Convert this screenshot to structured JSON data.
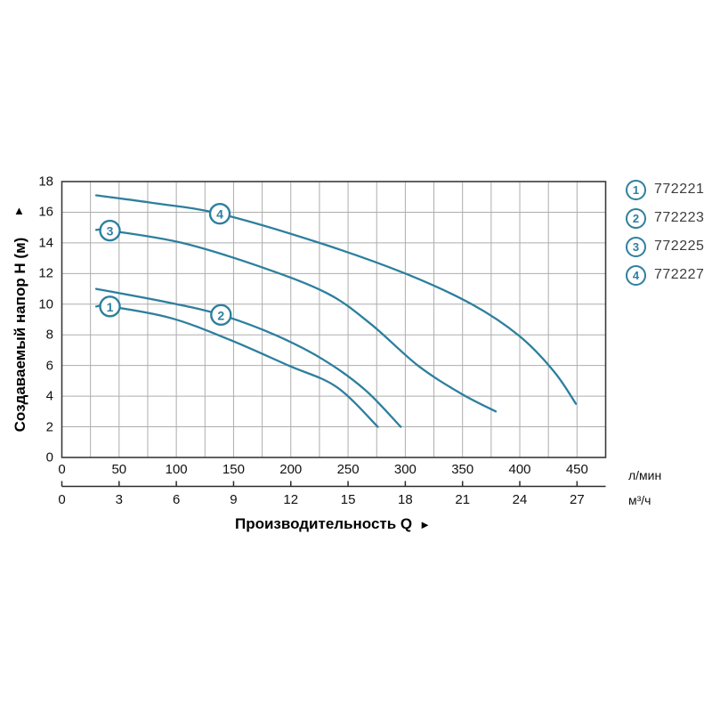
{
  "colors": {
    "curve": "#2d7f9e",
    "grid": "#adadad",
    "frame": "#3a3a3a",
    "axis": "#2b2b2b",
    "text": "#111111",
    "legend_text": "#3c3c3c"
  },
  "y_axis": {
    "title": "Создаваемый напор H (м)",
    "arrow": "▲",
    "ticks": [
      0,
      2,
      4,
      6,
      8,
      10,
      12,
      14,
      16,
      18
    ]
  },
  "x_axis_primary": {
    "unit": "л/мин",
    "ticks": [
      0,
      50,
      100,
      150,
      200,
      250,
      300,
      350,
      400,
      450
    ],
    "minor_step": 25,
    "max": 475
  },
  "x_axis_secondary": {
    "unit": "м³/ч",
    "ticks": [
      0,
      3,
      6,
      9,
      12,
      15,
      18,
      21,
      24,
      27
    ]
  },
  "x_title": {
    "label": "Производительность Q",
    "arrow": "►"
  },
  "legend": [
    {
      "num": "1",
      "code": "772221"
    },
    {
      "num": "2",
      "code": "772223"
    },
    {
      "num": "3",
      "code": "772225"
    },
    {
      "num": "4",
      "code": "772227"
    }
  ],
  "chart_data": {
    "type": "line",
    "title": "",
    "xlabel": "Производительность Q",
    "ylabel": "Создаваемый напор H (м)",
    "x_units": [
      "л/мин",
      "м³/ч"
    ],
    "unit_conversion": "3 м³/ч = 50 л/мин",
    "xlim_l_min": [
      0,
      475
    ],
    "xlim_m3_h": [
      0,
      28.5
    ],
    "ylim": [
      0,
      18
    ],
    "grid": true,
    "legend_position": "right-top",
    "series": [
      {
        "name": "772221",
        "label": "1",
        "points_q_lmin_h_m": [
          [
            30,
            9.85
          ],
          [
            42,
            9.85
          ],
          [
            95,
            9.1
          ],
          [
            146,
            7.7
          ],
          [
            198,
            6.0
          ],
          [
            240,
            4.6
          ],
          [
            276,
            2.0
          ]
        ],
        "marker_at": [
          42,
          9.85
        ]
      },
      {
        "name": "772223",
        "label": "2",
        "points_q_lmin_h_m": [
          [
            30,
            11.0
          ],
          [
            94,
            10.1
          ],
          [
            139,
            9.3
          ],
          [
            186,
            8.0
          ],
          [
            228,
            6.4
          ],
          [
            265,
            4.4
          ],
          [
            296,
            2.0
          ]
        ],
        "marker_at": [
          139,
          9.3
        ]
      },
      {
        "name": "772225",
        "label": "3",
        "points_q_lmin_h_m": [
          [
            30,
            14.85
          ],
          [
            42,
            14.8
          ],
          [
            105,
            14.0
          ],
          [
            175,
            12.4
          ],
          [
            232,
            10.7
          ],
          [
            270,
            8.7
          ],
          [
            311,
            6.0
          ],
          [
            348,
            4.2
          ],
          [
            379,
            3.0
          ]
        ],
        "marker_at": [
          42,
          14.8
        ]
      },
      {
        "name": "772227",
        "label": "4",
        "points_q_lmin_h_m": [
          [
            30,
            17.1
          ],
          [
            80,
            16.6
          ],
          [
            138,
            15.9
          ],
          [
            225,
            14.0
          ],
          [
            300,
            12.0
          ],
          [
            358,
            10.0
          ],
          [
            400,
            7.9
          ],
          [
            430,
            5.6
          ],
          [
            449,
            3.5
          ]
        ],
        "marker_at": [
          138,
          15.9
        ]
      }
    ]
  }
}
